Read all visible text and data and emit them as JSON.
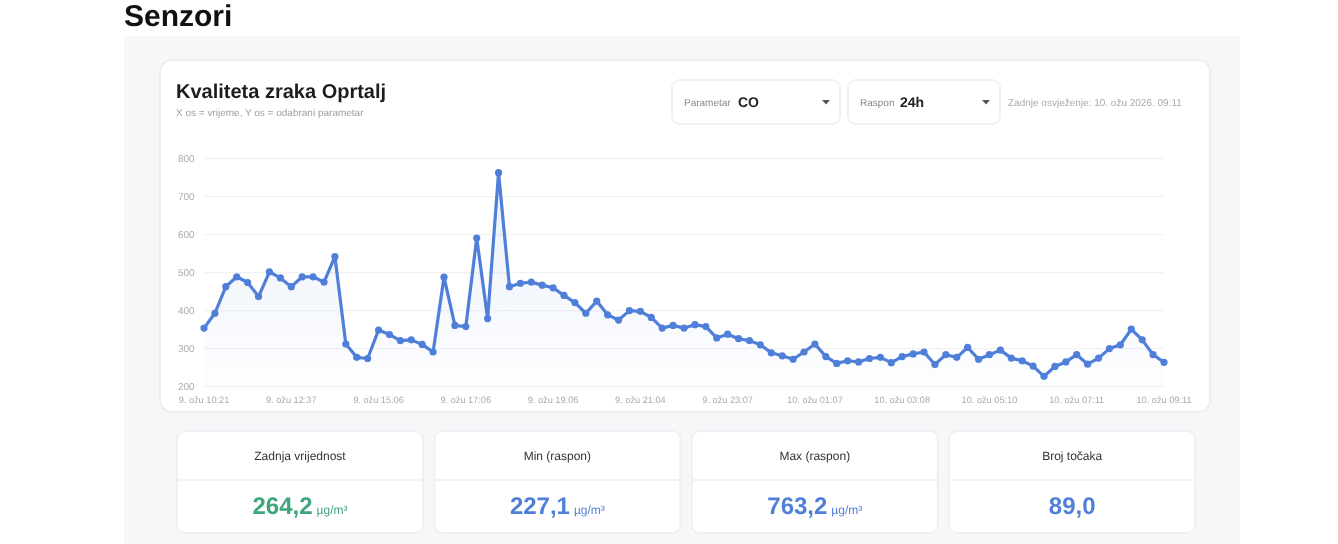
{
  "chart_data": [
    {
      "type": "area",
      "title": "Kvaliteta zraka Oprtalj",
      "subtitle": "X os = vrijeme, Y os = odabrani parametar",
      "annotations": [
        "Parametar",
        "CO",
        "Raspon",
        "24h",
        "Zadnje osvježenje: 10. ožu 2026. 09:11",
        "Senzori"
      ],
      "categories": [
        "9. ožu 10:21",
        null,
        null,
        null,
        null,
        null,
        null,
        null,
        "9. ožu 12:37",
        null,
        null,
        null,
        null,
        null,
        null,
        null,
        "9. ožu 15:06",
        null,
        null,
        null,
        null,
        null,
        null,
        null,
        "9. ožu 17:06",
        null,
        null,
        null,
        null,
        null,
        null,
        null,
        "9. ožu 19:06",
        null,
        null,
        null,
        null,
        null,
        null,
        null,
        "9. ožu 21:04",
        null,
        null,
        null,
        null,
        null,
        null,
        null,
        "9. ožu 23:07",
        null,
        null,
        null,
        null,
        null,
        null,
        null,
        "10. ožu 01:07",
        null,
        null,
        null,
        null,
        null,
        null,
        null,
        "10. ožu 03:08",
        null,
        null,
        null,
        null,
        null,
        null,
        null,
        "10. ožu 05:10",
        null,
        null,
        null,
        null,
        null,
        null,
        null,
        "10. ožu 07:11",
        null,
        null,
        null,
        null,
        null,
        null,
        null,
        "10. ožu 09:11"
      ],
      "series": [
        {
          "color": "#4f7fd9",
          "values": [
            354,
            393,
            463,
            489,
            474,
            437,
            502,
            486,
            463,
            489,
            489,
            475,
            542,
            312,
            277,
            274,
            349,
            337,
            321,
            323,
            311,
            291,
            488,
            361,
            358,
            591,
            379,
            763,
            463,
            472,
            475,
            467,
            460,
            440,
            421,
            393,
            425,
            389,
            375,
            400,
            398,
            382,
            354,
            361,
            354,
            363,
            358,
            328,
            338,
            326,
            321,
            310,
            289,
            281,
            272,
            291,
            312,
            279,
            261,
            268,
            265,
            274,
            277,
            263,
            279,
            286,
            291,
            258,
            284,
            277,
            303,
            272,
            284,
            296,
            275,
            268,
            254,
            227,
            253,
            265,
            284,
            259,
            275,
            300,
            310,
            351,
            323,
            284,
            264
          ]
        }
      ],
      "ylim": [
        200,
        800
      ],
      "yticks": [
        200,
        300,
        400,
        500,
        600,
        700,
        800
      ],
      "grid": "y",
      "marker": "circle",
      "line_style": "solid"
    },
    {
      "type": "other",
      "categories": [
        "Zadnja vrijednost",
        "Min (raspon)",
        "Max (raspon)",
        "Broj točaka"
      ],
      "value_labels": [
        "264,2 µg/m³",
        "227,1 µg/m³",
        "763,2 µg/m³",
        "89,0"
      ],
      "colors": [
        "#3fa57a",
        "#4f7fd9",
        "#4f7fd9",
        "#4f7fd9"
      ]
    }
  ]
}
